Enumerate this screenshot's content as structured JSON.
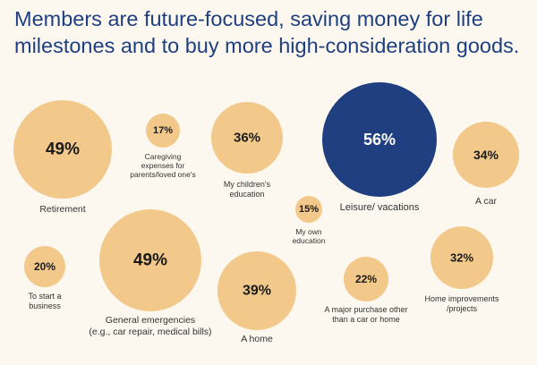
{
  "title": {
    "line1": "Members are future-focused, saving money for life",
    "line2": "milestones and to buy more high-consideration goods."
  },
  "colors": {
    "bubble": "#f2c98a",
    "highlight": "#1f3f80",
    "title": "#1e3f80",
    "background": "#fdf8ef"
  },
  "chart_data": {
    "type": "bubble",
    "title": "Members are future-focused, saving money for life milestones and to buy more high-consideration goods.",
    "unit": "%",
    "items": [
      {
        "id": "retirement",
        "value": 49,
        "display": "49%",
        "label_lines": [
          "Retirement"
        ],
        "highlight": false
      },
      {
        "id": "caregiving",
        "value": 17,
        "display": "17%",
        "label_lines": [
          "Caregiving",
          "expenses for",
          "parents/loved one's"
        ],
        "highlight": false
      },
      {
        "id": "childrens-education",
        "value": 36,
        "display": "36%",
        "label_lines": [
          "My children's",
          "education"
        ],
        "highlight": false
      },
      {
        "id": "leisure",
        "value": 56,
        "display": "56%",
        "label_lines": [
          "Leisure/ vacations"
        ],
        "highlight": true
      },
      {
        "id": "car",
        "value": 34,
        "display": "34%",
        "label_lines": [
          "A car"
        ],
        "highlight": false
      },
      {
        "id": "own-education",
        "value": 15,
        "display": "15%",
        "label_lines": [
          "My own",
          "education"
        ],
        "highlight": false
      },
      {
        "id": "business",
        "value": 20,
        "display": "20%",
        "label_lines": [
          "To start a",
          "business"
        ],
        "highlight": false
      },
      {
        "id": "emergencies",
        "value": 49,
        "display": "49%",
        "label_lines": [
          "General emergencies",
          "(e.g., car repair, medical bills)"
        ],
        "highlight": false
      },
      {
        "id": "home",
        "value": 39,
        "display": "39%",
        "label_lines": [
          "A home"
        ],
        "highlight": false
      },
      {
        "id": "major-purchase",
        "value": 22,
        "display": "22%",
        "label_lines": [
          "A major purchase other",
          "than a car or home"
        ],
        "highlight": false
      },
      {
        "id": "home-improvements",
        "value": 32,
        "display": "32%",
        "label_lines": [
          "Home improvements",
          "/projects"
        ],
        "highlight": false
      }
    ]
  }
}
